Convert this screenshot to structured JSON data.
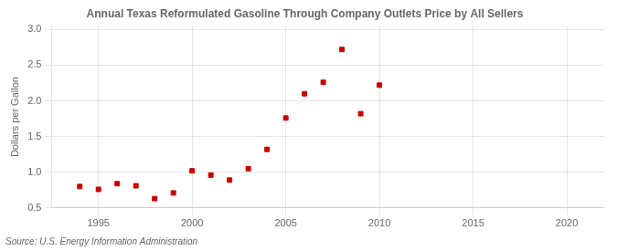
{
  "chart_data": {
    "type": "scatter",
    "title": "Annual Texas Reformulated Gasoline Through Company Outlets Price by All Sellers",
    "ylabel": "Dollars per Gallon",
    "annotation": "Source: U.S. Energy Information Administration",
    "x": [
      1994,
      1995,
      1996,
      1997,
      1998,
      1999,
      2000,
      2001,
      2002,
      2003,
      2004,
      2005,
      2006,
      2007,
      2008,
      2009,
      2010
    ],
    "values": [
      0.8,
      0.76,
      0.84,
      0.81,
      0.63,
      0.71,
      1.02,
      0.96,
      0.89,
      1.05,
      1.32,
      1.76,
      2.1,
      2.26,
      2.72,
      1.82,
      2.22
    ],
    "color": "#cc0000",
    "marker": "square",
    "xlim": [
      1992.5,
      2022
    ],
    "ylim": [
      0.5,
      3.05
    ],
    "xticks": [
      1995,
      2000,
      2005,
      2010,
      2015,
      2020
    ],
    "yticks": [
      0.5,
      {
        "value": 1.0,
        "label": "1.0"
      },
      1.5,
      {
        "value": 2.0,
        "label": "2.0"
      },
      2.5,
      {
        "value": 3.0,
        "label": "3.0"
      }
    ],
    "grid": true
  }
}
